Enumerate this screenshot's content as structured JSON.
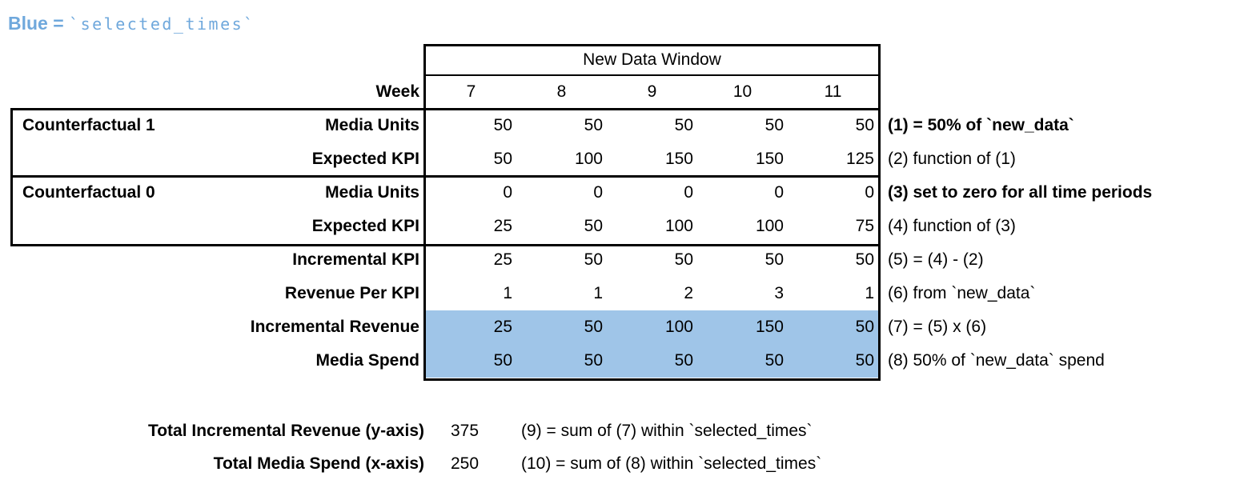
{
  "legend": {
    "prefix": "Blue = ",
    "code": "`selected_times`"
  },
  "table": {
    "window_title": "New Data Window",
    "week_label": "Week",
    "weeks": [
      "7",
      "8",
      "9",
      "10",
      "11"
    ],
    "groups": [
      {
        "label": "Counterfactual 1"
      },
      {
        "label": "Counterfactual 0"
      }
    ],
    "rows": [
      {
        "label": "Media Units",
        "values": [
          "50",
          "50",
          "50",
          "50",
          "50"
        ],
        "note": "(1) = 50% of `new_data`"
      },
      {
        "label": "Expected KPI",
        "values": [
          "50",
          "100",
          "150",
          "150",
          "125"
        ],
        "note": "(2) function of (1)"
      },
      {
        "label": "Media Units",
        "values": [
          "0",
          "0",
          "0",
          "0",
          "0"
        ],
        "note": "(3) set to zero for all time periods"
      },
      {
        "label": "Expected KPI",
        "values": [
          "25",
          "50",
          "100",
          "100",
          "75"
        ],
        "note": "(4) function of (3)"
      },
      {
        "label": "Incremental KPI",
        "values": [
          "25",
          "50",
          "50",
          "50",
          "50"
        ],
        "note": "(5) = (4) - (2)"
      },
      {
        "label": "Revenue Per KPI",
        "values": [
          "1",
          "1",
          "2",
          "3",
          "1"
        ],
        "note": "(6) from `new_data`"
      },
      {
        "label": "Incremental Revenue",
        "values": [
          "25",
          "50",
          "100",
          "150",
          "50"
        ],
        "note": "(7) = (5) x (6)"
      },
      {
        "label": "Media Spend",
        "values": [
          "50",
          "50",
          "50",
          "50",
          "50"
        ],
        "note": "(8) 50% of `new_data` spend"
      }
    ]
  },
  "totals": [
    {
      "label": "Total Incremental Revenue (y-axis)",
      "value": "375",
      "note": "(9) = sum of (7) within `selected_times`"
    },
    {
      "label": "Total Media Spend (x-axis)",
      "value": "250",
      "note": "(10) = sum of (8) within `selected_times`"
    }
  ],
  "colors": {
    "highlight_fill": "#9fc5e8",
    "legend_text": "#6fa8dc",
    "border": "#000000"
  }
}
